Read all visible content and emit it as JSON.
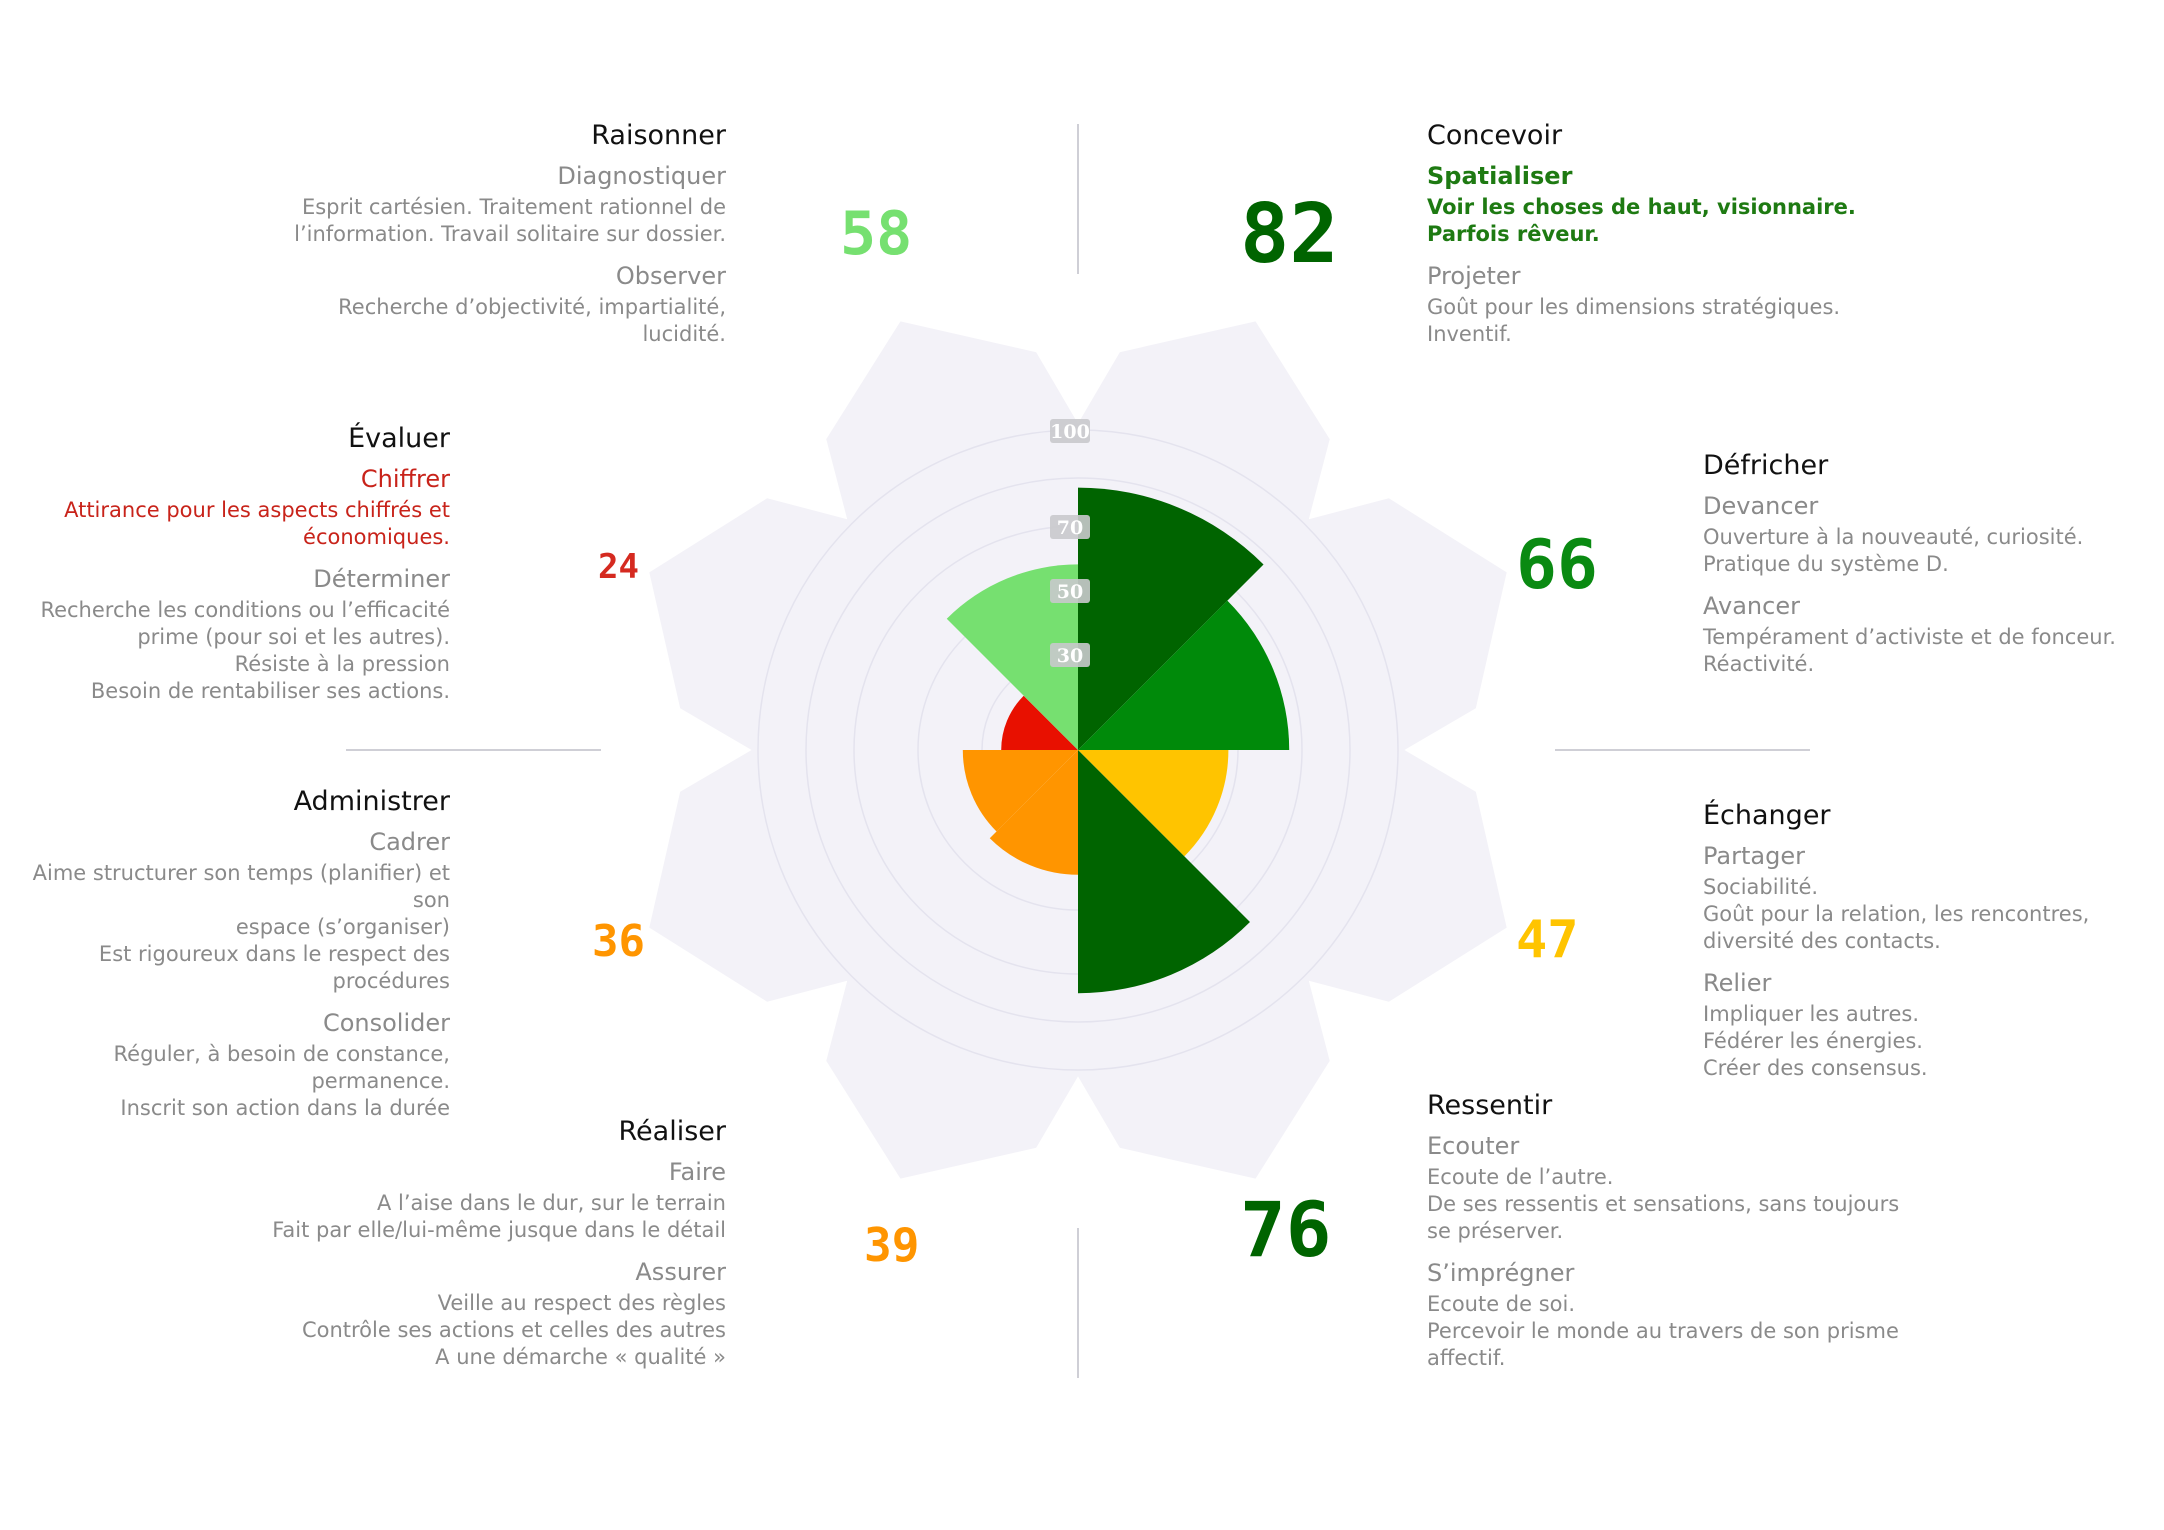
{
  "colors": {
    "dark_green": "#006400",
    "green": "#008a0a",
    "light_green": "#76e070",
    "yellow": "#ffc400",
    "orange": "#ff9500",
    "red": "#e81000",
    "halo": "#f3f2f8",
    "ring": "#e4e3ee"
  },
  "sections": {
    "raisonner": {
      "title": "Raisonner",
      "score": "58",
      "color": "#76e070",
      "subs": [
        {
          "title": "Diagnostiquer",
          "desc": [
            "Esprit cartésien. Traitement rationnel de",
            "l’information. Travail solitaire sur dossier."
          ]
        },
        {
          "title": "Observer",
          "desc": [
            "Recherche d’objectivité, impartialité,",
            "lucidité."
          ]
        }
      ]
    },
    "concevoir": {
      "title": "Concevoir",
      "score": "82",
      "color": "#006400",
      "subs": [
        {
          "title": "Spatialiser",
          "desc": [
            "Voir les choses de haut, visionnaire.",
            "Parfois rêveur."
          ],
          "highlight": "#1e7a12"
        },
        {
          "title": "Projeter",
          "desc": [
            "Goût pour les dimensions stratégiques.",
            "Inventif."
          ]
        }
      ]
    },
    "evaluer": {
      "title": "Évaluer",
      "score": "24",
      "color": "#d52a20",
      "subs": [
        {
          "title": "Chiffrer",
          "desc": [
            "Attirance pour les aspects chiffrés et",
            "économiques."
          ],
          "highlight": "#c8231a"
        },
        {
          "title": "Déterminer",
          "desc": [
            "Recherche les conditions ou l’efficacité",
            "prime (pour soi et les autres).",
            "Résiste à la pression",
            "Besoin de rentabiliser ses actions."
          ]
        }
      ]
    },
    "defricher": {
      "title": "Défricher",
      "score": "66",
      "color": "#0a8a12",
      "subs": [
        {
          "title": "Devancer",
          "desc": [
            "Ouverture à la nouveauté, curiosité.",
            "Pratique du système D."
          ]
        },
        {
          "title": "Avancer",
          "desc": [
            "Tempérament d’activiste et de fonceur.",
            "Réactivité."
          ]
        }
      ]
    },
    "administrer": {
      "title": "Administrer",
      "score": "36",
      "color": "#ff9500",
      "subs": [
        {
          "title": "Cadrer",
          "desc": [
            "Aime structurer son temps (planifier) et son",
            "espace (s’organiser)",
            "Est rigoureux dans le respect des",
            "procédures"
          ]
        },
        {
          "title": "Consolider",
          "desc": [
            "Réguler, à besoin de constance,",
            "permanence.",
            "Inscrit son action dans la durée"
          ]
        }
      ]
    },
    "echanger": {
      "title": "Échanger",
      "score": "47",
      "color": "#ffc400",
      "subs": [
        {
          "title": "Partager",
          "desc": [
            "Sociabilité.",
            "Goût pour la relation, les rencontres,",
            "diversité des contacts."
          ]
        },
        {
          "title": "Relier",
          "desc": [
            "Impliquer les autres.",
            "Fédérer les énergies.",
            "Créer des consensus."
          ]
        }
      ]
    },
    "realiser": {
      "title": "Réaliser",
      "score": "39",
      "color": "#ff9500",
      "subs": [
        {
          "title": "Faire",
          "desc": [
            "A l’aise dans le dur, sur le terrain",
            "Fait par elle/lui-même jusque dans le détail"
          ]
        },
        {
          "title": "Assurer",
          "desc": [
            "Veille au respect des règles",
            "Contrôle ses actions et celles des autres",
            "A une démarche « qualité »"
          ]
        }
      ]
    },
    "ressentir": {
      "title": "Ressentir",
      "score": "76",
      "color": "#006400",
      "subs": [
        {
          "title": "Ecouter",
          "desc": [
            "Ecoute de l’autre.",
            "De ses ressentis et sensations, sans toujours",
            "se préserver."
          ]
        },
        {
          "title": "S’imprégner",
          "desc": [
            "Ecoute de soi.",
            "Percevoir le monde au travers de son prisme",
            "affectif."
          ]
        }
      ]
    }
  },
  "chart_data": {
    "type": "polar-area",
    "scale_max": 100,
    "ring_ticks": [
      100,
      70,
      50,
      30
    ],
    "tick_labels": [
      "100",
      "70",
      "50",
      "30"
    ],
    "categories": [
      "Concevoir",
      "Défricher",
      "Échanger",
      "Ressentir",
      "Réaliser",
      "Administrer",
      "Évaluer",
      "Raisonner"
    ],
    "values": [
      82,
      66,
      47,
      76,
      39,
      36,
      24,
      58
    ],
    "colors": [
      "#006400",
      "#008a0a",
      "#ffc400",
      "#006400",
      "#ff9500",
      "#ff9500",
      "#e81000",
      "#76e070"
    ]
  }
}
